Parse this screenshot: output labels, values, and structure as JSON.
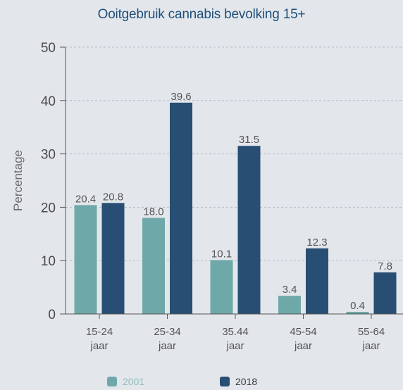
{
  "chart_data": {
    "type": "bar",
    "title": "Ooitgebruik cannabis bevolking 15+",
    "ylabel": "Percentage",
    "xlabel": "",
    "ylim": [
      0,
      50
    ],
    "yticks": [
      0,
      10,
      20,
      30,
      40,
      50
    ],
    "grid": true,
    "legend_position": "bottom",
    "categories": [
      [
        "15-24",
        "jaar"
      ],
      [
        "25-34",
        "jaar"
      ],
      [
        "35.44",
        "jaar"
      ],
      [
        "45-54",
        "jaar"
      ],
      [
        "55-64",
        "jaar"
      ]
    ],
    "series": [
      {
        "name": "2001",
        "color": "#6fa8a8",
        "values": [
          20.4,
          18.0,
          10.1,
          3.4,
          0.4
        ],
        "labels": [
          "20.4",
          "18.0",
          "10.1",
          "3.4",
          "0.4"
        ]
      },
      {
        "name": "2018",
        "color": "#284e73",
        "values": [
          20.8,
          39.6,
          31.5,
          12.3,
          7.8
        ],
        "labels": [
          "20.8",
          "39.6",
          "31.5",
          "12.3",
          "7.8"
        ]
      }
    ]
  }
}
